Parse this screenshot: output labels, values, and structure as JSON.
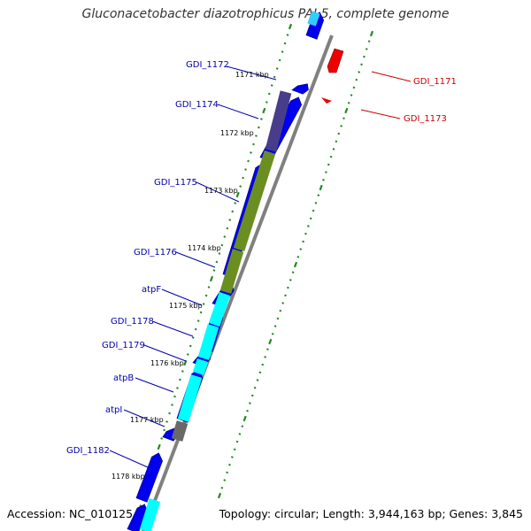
{
  "title": "Gluconacetobacter diazotrophicus PAI 5, complete genome",
  "footer": {
    "accession": "Accession: NC_010125",
    "topology": "Topology: circular; Length: 3,944,163 bp; Genes: 3,845"
  },
  "colors": {
    "forward_cds": "#0000ee",
    "reverse_cds": "#ee0000",
    "forward_label": "#0000aa",
    "reverse_label": "#cc0000",
    "tick": "#228b22",
    "backbone": "#808080"
  },
  "tick_labels": [
    "1171 kbp",
    "1172 kbp",
    "1173 kbp",
    "1174 kbp",
    "1175 kbp",
    "1176 kbp",
    "1177 kbp",
    "1178 kbp"
  ],
  "genes_forward": [
    "GDI_1172",
    "GDI_1174",
    "GDI_1175",
    "GDI_1176",
    "atpF",
    "GDI_1178",
    "GDI_1179",
    "atpB",
    "atpI",
    "GDI_1182"
  ],
  "genes_reverse": [
    "GDI_1171",
    "GDI_1173"
  ],
  "cog_colors": [
    "#483d8b",
    "#6b8e23",
    "#00ffff",
    "#696969"
  ]
}
